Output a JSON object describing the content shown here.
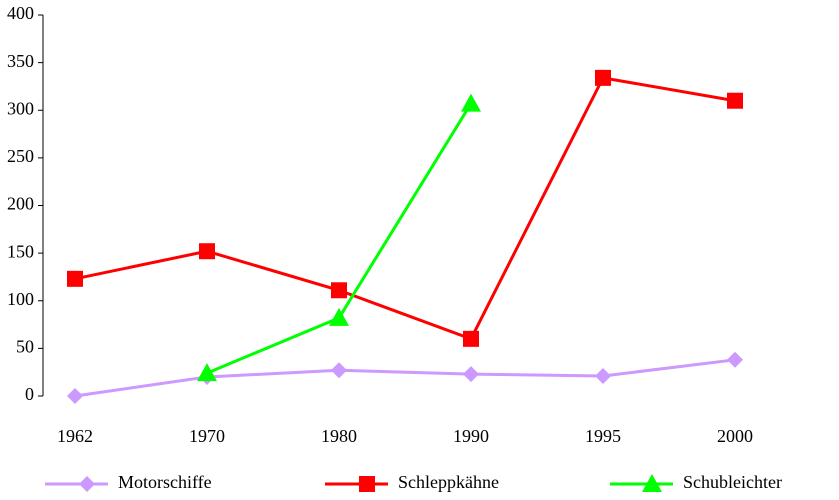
{
  "chart_data": {
    "type": "line",
    "categories": [
      "1962",
      "1970",
      "1980",
      "1990",
      "1995",
      "2000"
    ],
    "series": [
      {
        "name": "Motorschiffe",
        "color": "#cc99ff",
        "marker": "diamond",
        "values": [
          0,
          20,
          27,
          23,
          21,
          38
        ]
      },
      {
        "name": "Schleppkähne",
        "color": "#ff0000",
        "marker": "square",
        "values": [
          123,
          152,
          111,
          60,
          334,
          310
        ]
      },
      {
        "name": "Schubleichter",
        "color": "#00ff00",
        "marker": "triangle",
        "values": [
          null,
          24,
          82,
          307,
          null,
          null
        ]
      }
    ],
    "ylim": [
      0,
      400
    ],
    "yticks": [
      0,
      50,
      100,
      150,
      200,
      250,
      300,
      350,
      400
    ],
    "grid": false,
    "legend": "bottom"
  }
}
